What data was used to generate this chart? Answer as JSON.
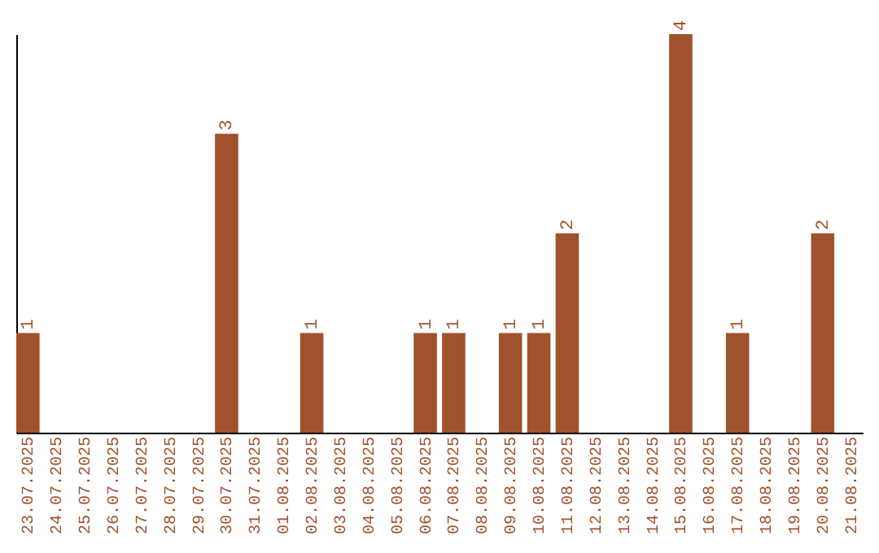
{
  "chart_data": {
    "type": "bar",
    "categories": [
      "23.07.2025",
      "24.07.2025",
      "25.07.2025",
      "26.07.2025",
      "27.07.2025",
      "28.07.2025",
      "29.07.2025",
      "30.07.2025",
      "31.07.2025",
      "01.08.2025",
      "02.08.2025",
      "03.08.2025",
      "04.08.2025",
      "05.08.2025",
      "06.08.2025",
      "07.08.2025",
      "08.08.2025",
      "09.08.2025",
      "10.08.2025",
      "11.08.2025",
      "12.08.2025",
      "13.08.2025",
      "14.08.2025",
      "15.08.2025",
      "16.08.2025",
      "17.08.2025",
      "18.08.2025",
      "19.08.2025",
      "20.08.2025",
      "21.08.2025"
    ],
    "values": [
      1,
      0,
      0,
      0,
      0,
      0,
      0,
      3,
      0,
      0,
      1,
      0,
      0,
      0,
      1,
      1,
      0,
      1,
      1,
      2,
      0,
      0,
      0,
      4,
      0,
      1,
      0,
      0,
      2,
      0
    ],
    "value_labels": [
      "1",
      null,
      null,
      null,
      null,
      null,
      null,
      "3",
      null,
      null,
      "1",
      null,
      null,
      null,
      "1",
      "1",
      null,
      "1",
      "1",
      "2",
      null,
      null,
      null,
      "4",
      null,
      "1",
      null,
      null,
      "2",
      null
    ],
    "color": "#a0522d",
    "tick_labels": "x"
  }
}
